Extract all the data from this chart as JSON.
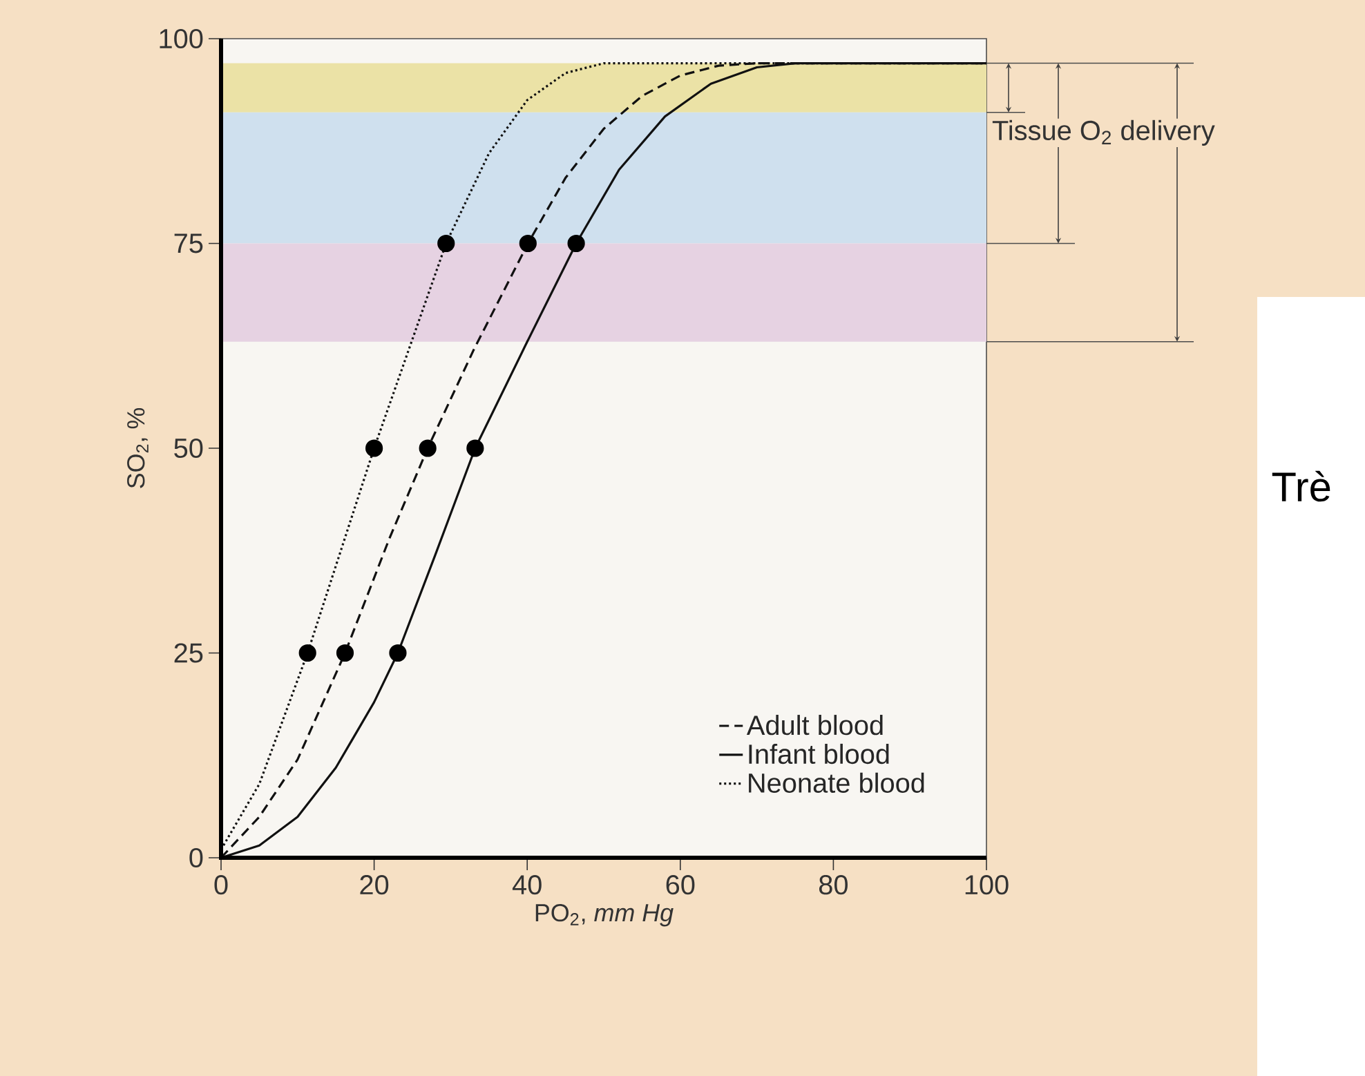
{
  "chart_data": {
    "type": "line",
    "xlabel": "PO$_{2}$, *mm Hg*",
    "ylabel": "SO$_{2}$, %",
    "xlim": [
      0,
      100
    ],
    "ylim": [
      0,
      100
    ],
    "xticks": [
      0,
      20,
      40,
      60,
      80,
      100
    ],
    "yticks": [
      0,
      25,
      50,
      75,
      100
    ],
    "legend": "bottom right",
    "grid": false,
    "series": [
      {
        "name": "Adult blood",
        "type": "line",
        "line_style": "dashed",
        "marker": "none",
        "color": "#111111",
        "x": [
          0,
          5,
          10,
          16.2,
          22,
          27,
          33,
          40.1,
          45,
          50,
          55,
          60,
          65,
          70,
          100
        ],
        "values": [
          0,
          5,
          12,
          25,
          39,
          50,
          62,
          75,
          83,
          89,
          93,
          95.5,
          96.7,
          97,
          97
        ]
      },
      {
        "name": "Infant blood",
        "type": "line",
        "line_style": "solid",
        "marker": "none",
        "color": "#111111",
        "x": [
          0,
          5,
          10,
          15,
          20,
          23.1,
          28,
          33.2,
          40,
          46.4,
          52,
          58,
          64,
          70,
          75,
          100
        ],
        "values": [
          0,
          1.5,
          5,
          11,
          19,
          25,
          37,
          50,
          63,
          75,
          84,
          90.5,
          94.5,
          96.5,
          97,
          97
        ]
      },
      {
        "name": "Neonate blood",
        "type": "line",
        "line_style": "dotted",
        "marker": "none",
        "color": "#111111",
        "x": [
          0,
          5,
          11.3,
          20,
          29.4,
          35,
          40,
          45,
          50,
          100
        ],
        "values": [
          1,
          9,
          25,
          50,
          75,
          86,
          92.5,
          95.8,
          97,
          97
        ]
      },
      {
        "type": "scatter",
        "marker": "circle",
        "color": "#000000",
        "x": [
          11.3,
          16.2,
          23.1,
          20,
          27,
          33.2,
          29.4,
          40.1,
          46.4
        ],
        "values": [
          25,
          25,
          25,
          50,
          50,
          50,
          75,
          75,
          75
        ]
      }
    ],
    "bands": [
      {
        "axis": "y",
        "from": 97,
        "to": 91,
        "color": "#ebe2a6"
      },
      {
        "axis": "y",
        "from": 91,
        "to": 75,
        "color": "#cfe0ee"
      },
      {
        "axis": "y",
        "from": 75,
        "to": 63,
        "color": "#e6d2e2"
      }
    ],
    "annotations": [
      "Tissue O$_{2}$ delivery",
      "Trè"
    ]
  }
}
